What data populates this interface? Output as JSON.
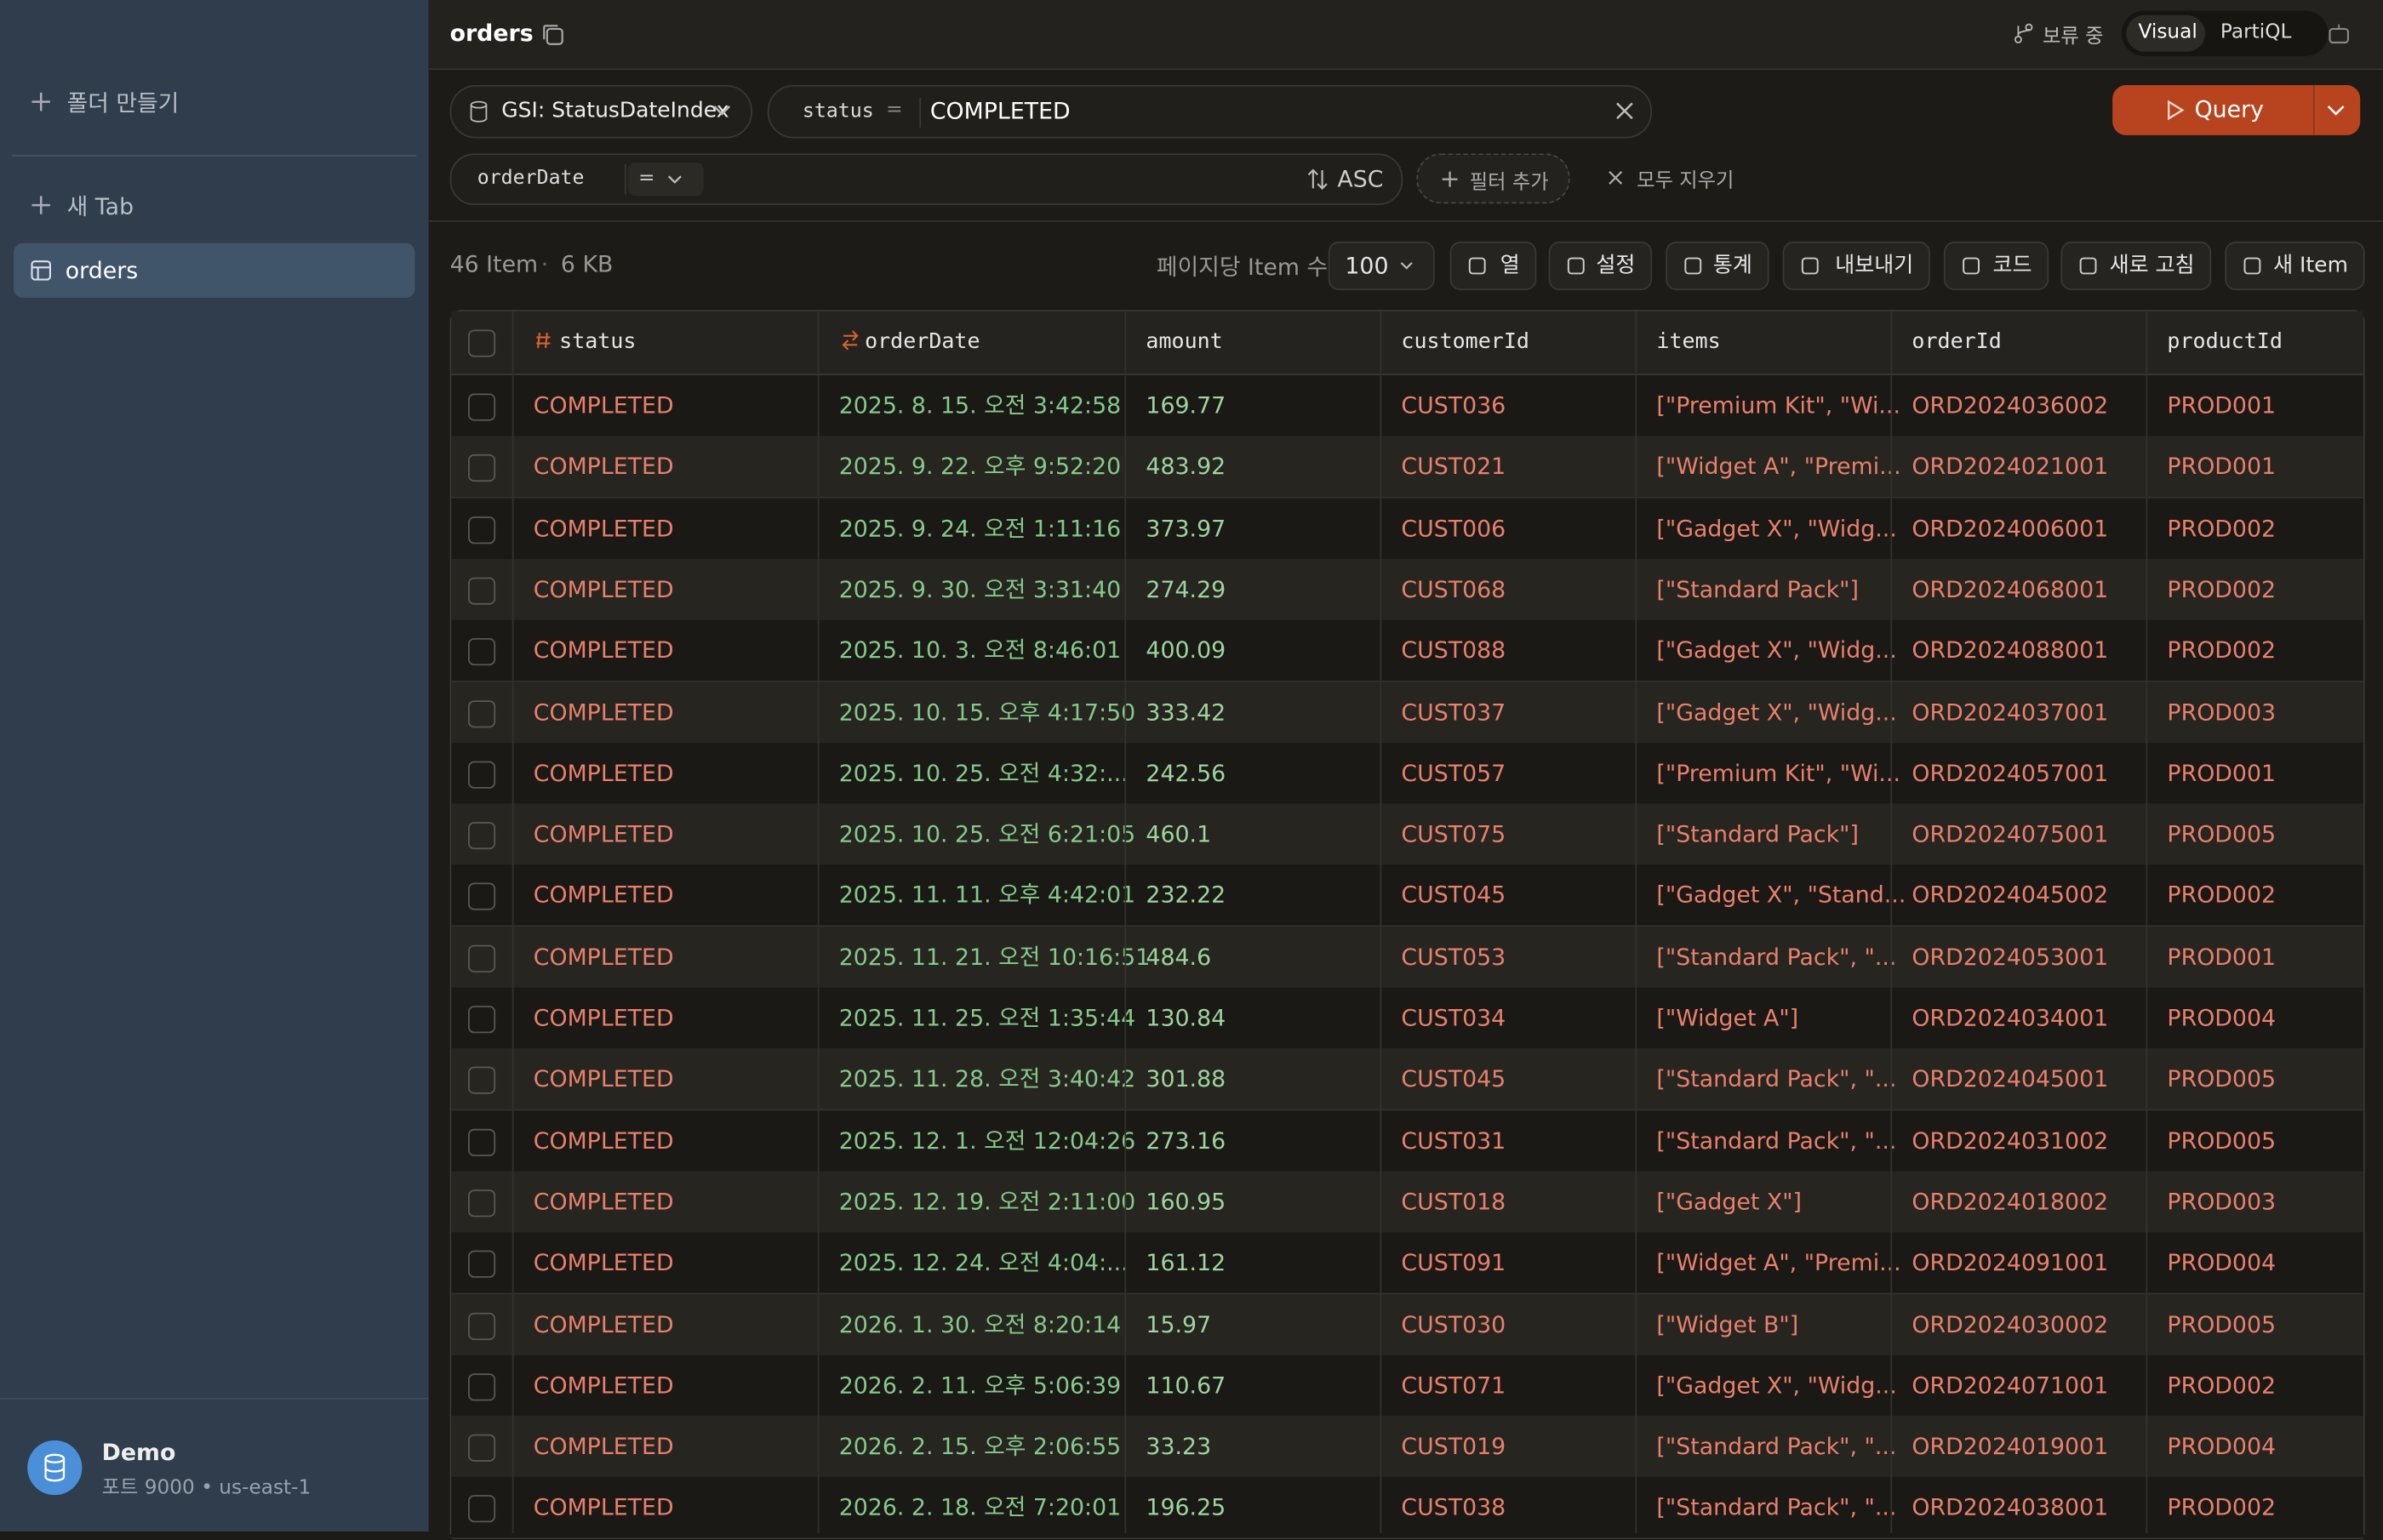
{
  "sidebar": {
    "new_folder": "폴더 만들기",
    "new_tab": "새 Tab",
    "tables": [
      "orders"
    ],
    "connection": {
      "name": "Demo",
      "detail": "포트 9000 • us-east-1"
    }
  },
  "header": {
    "title": "orders",
    "pending": "보류 중",
    "modes": [
      "Visual",
      "PartiQL"
    ]
  },
  "query": {
    "index": "GSI: StatusDateIndex",
    "pk_name": "status",
    "pk_op": "=",
    "pk_value": "COMPLETED",
    "run": "Query",
    "sk_name": "orderDate",
    "sk_op": "=",
    "sort": "ASC",
    "add_filter": "필터 추가",
    "clear_all": "모두 지우기"
  },
  "toolbar": {
    "count": "46 Item",
    "size": "6 KB",
    "page_size_label": "페이지당 Item 수",
    "page_size": "100",
    "buttons": [
      "열",
      "설정",
      "통계",
      "내보내기",
      "코드",
      "새로 고침",
      "새 Item"
    ]
  },
  "table": {
    "columns": [
      "status",
      "orderDate",
      "amount",
      "customerId",
      "items",
      "orderId",
      "productId"
    ],
    "rows": [
      [
        "COMPLETED",
        "2025. 8. 15. 오전 3:42:58",
        "169.77",
        "CUST036",
        "[\"Premium Kit\", \"Wi...",
        "ORD2024036002",
        "PROD001"
      ],
      [
        "COMPLETED",
        "2025. 9. 22. 오후 9:52:20",
        "483.92",
        "CUST021",
        "[\"Widget A\", \"Premi...",
        "ORD2024021001",
        "PROD001"
      ],
      [
        "COMPLETED",
        "2025. 9. 24. 오전 1:11:16",
        "373.97",
        "CUST006",
        "[\"Gadget X\", \"Widg...",
        "ORD2024006001",
        "PROD002"
      ],
      [
        "COMPLETED",
        "2025. 9. 30. 오전 3:31:40",
        "274.29",
        "CUST068",
        "[\"Standard Pack\"]",
        "ORD2024068001",
        "PROD002"
      ],
      [
        "COMPLETED",
        "2025. 10. 3. 오전 8:46:01",
        "400.09",
        "CUST088",
        "[\"Gadget X\", \"Widg...",
        "ORD2024088001",
        "PROD002"
      ],
      [
        "COMPLETED",
        "2025. 10. 15. 오후 4:17:50",
        "333.42",
        "CUST037",
        "[\"Gadget X\", \"Widg...",
        "ORD2024037001",
        "PROD003"
      ],
      [
        "COMPLETED",
        "2025. 10. 25. 오전 4:32:...",
        "242.56",
        "CUST057",
        "[\"Premium Kit\", \"Wi...",
        "ORD2024057001",
        "PROD001"
      ],
      [
        "COMPLETED",
        "2025. 10. 25. 오전 6:21:05",
        "460.1",
        "CUST075",
        "[\"Standard Pack\"]",
        "ORD2024075001",
        "PROD005"
      ],
      [
        "COMPLETED",
        "2025. 11. 11. 오후 4:42:01",
        "232.22",
        "CUST045",
        "[\"Gadget X\", \"Stand...",
        "ORD2024045002",
        "PROD002"
      ],
      [
        "COMPLETED",
        "2025. 11. 21. 오전 10:16:51",
        "484.6",
        "CUST053",
        "[\"Standard Pack\", \"...",
        "ORD2024053001",
        "PROD001"
      ],
      [
        "COMPLETED",
        "2025. 11. 25. 오전 1:35:44",
        "130.84",
        "CUST034",
        "[\"Widget A\"]",
        "ORD2024034001",
        "PROD004"
      ],
      [
        "COMPLETED",
        "2025. 11. 28. 오전 3:40:42",
        "301.88",
        "CUST045",
        "[\"Standard Pack\", \"...",
        "ORD2024045001",
        "PROD005"
      ],
      [
        "COMPLETED",
        "2025. 12. 1. 오전 12:04:26",
        "273.16",
        "CUST031",
        "[\"Standard Pack\", \"...",
        "ORD2024031002",
        "PROD005"
      ],
      [
        "COMPLETED",
        "2025. 12. 19. 오전 2:11:00",
        "160.95",
        "CUST018",
        "[\"Gadget X\"]",
        "ORD2024018002",
        "PROD003"
      ],
      [
        "COMPLETED",
        "2025. 12. 24. 오전 4:04:...",
        "161.12",
        "CUST091",
        "[\"Widget A\", \"Premi...",
        "ORD2024091001",
        "PROD004"
      ],
      [
        "COMPLETED",
        "2026. 1. 30. 오전 8:20:14",
        "15.97",
        "CUST030",
        "[\"Widget B\"]",
        "ORD2024030002",
        "PROD005"
      ],
      [
        "COMPLETED",
        "2026. 2. 11. 오후 5:06:39",
        "110.67",
        "CUST071",
        "[\"Gadget X\", \"Widg...",
        "ORD2024071001",
        "PROD002"
      ],
      [
        "COMPLETED",
        "2026. 2. 15. 오후 2:06:55",
        "33.23",
        "CUST019",
        "[\"Standard Pack\", \"...",
        "ORD2024019001",
        "PROD004"
      ],
      [
        "COMPLETED",
        "2026. 2. 18. 오전 7:20:01",
        "196.25",
        "CUST038",
        "[\"Standard Pack\", \"...",
        "ORD2024038001",
        "PROD002"
      ]
    ]
  }
}
